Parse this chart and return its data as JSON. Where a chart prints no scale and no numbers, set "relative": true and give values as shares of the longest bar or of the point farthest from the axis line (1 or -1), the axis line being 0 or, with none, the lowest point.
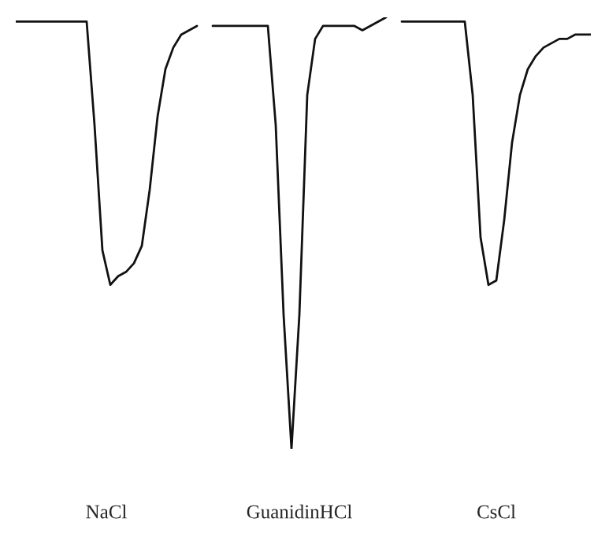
{
  "chart_data": {
    "type": "line",
    "relative": true,
    "legend": false,
    "annotations": [
      "NaCl",
      "GuanidinHCl",
      "CsCl"
    ],
    "marker": "none",
    "line_style": "solid",
    "categories": [
      null,
      null,
      null,
      null,
      null,
      null,
      null,
      null,
      null,
      null,
      null,
      null,
      null,
      null,
      null,
      null,
      null,
      null,
      null,
      null,
      null,
      null,
      null,
      null,
      null,
      null,
      null,
      null,
      null,
      null,
      null,
      null,
      null,
      null,
      null,
      null,
      null,
      null,
      null,
      null,
      null,
      null,
      null,
      null,
      null,
      null,
      null,
      null,
      null,
      null,
      null,
      null,
      null,
      null,
      null,
      null,
      null,
      null,
      null,
      null,
      null,
      null,
      null,
      null,
      null,
      null,
      null,
      null,
      null,
      null,
      null,
      null,
      null,
      null
    ],
    "series": [
      {
        "color": "#111111",
        "values": [
          0.99,
          0.99,
          0.99,
          0.99,
          0.99,
          0.99,
          0.99,
          0.99,
          0.99,
          0.99,
          0.75,
          0.46,
          0.38,
          0.4,
          0.41,
          0.43,
          0.47,
          0.6,
          0.77,
          0.88,
          0.93,
          0.96,
          0.97,
          0.98,
          null,
          null,
          null,
          null,
          null,
          null,
          null,
          null,
          null,
          null,
          null,
          null,
          null,
          null,
          null,
          null,
          null,
          null,
          null,
          null,
          null,
          null,
          null,
          null,
          null,
          null,
          null,
          null,
          null,
          null,
          null,
          null,
          null,
          null,
          null,
          null,
          null,
          null,
          null,
          null,
          null,
          null,
          null,
          null,
          null,
          null,
          null,
          null,
          null,
          null
        ]
      },
      {
        "color": "#111111",
        "values": [
          null,
          null,
          null,
          null,
          null,
          null,
          null,
          null,
          null,
          null,
          null,
          null,
          null,
          null,
          null,
          null,
          null,
          null,
          null,
          null,
          null,
          null,
          null,
          null,
          null,
          0.98,
          0.98,
          0.98,
          0.98,
          0.98,
          0.98,
          0.98,
          0.98,
          0.75,
          0.31,
          0.0,
          0.31,
          0.82,
          0.95,
          0.98,
          0.98,
          0.98,
          0.98,
          0.98,
          0.97,
          0.98,
          0.99,
          1.0,
          null,
          null,
          null,
          null,
          null,
          null,
          null,
          null,
          null,
          null,
          null,
          null,
          null,
          null,
          null,
          null,
          null,
          null,
          null,
          null,
          null,
          null,
          null,
          null,
          null,
          null
        ]
      },
      {
        "color": "#111111",
        "values": [
          null,
          null,
          null,
          null,
          null,
          null,
          null,
          null,
          null,
          null,
          null,
          null,
          null,
          null,
          null,
          null,
          null,
          null,
          null,
          null,
          null,
          null,
          null,
          null,
          null,
          null,
          null,
          null,
          null,
          null,
          null,
          null,
          null,
          null,
          null,
          null,
          null,
          null,
          null,
          null,
          null,
          null,
          null,
          null,
          null,
          null,
          null,
          null,
          null,
          0.99,
          0.99,
          0.99,
          0.99,
          0.99,
          0.99,
          0.99,
          0.99,
          0.99,
          0.82,
          0.49,
          0.38,
          0.39,
          0.53,
          0.71,
          0.82,
          0.88,
          0.91,
          0.93,
          0.94,
          0.95,
          0.95,
          0.96,
          0.96,
          0.96
        ]
      }
    ]
  }
}
